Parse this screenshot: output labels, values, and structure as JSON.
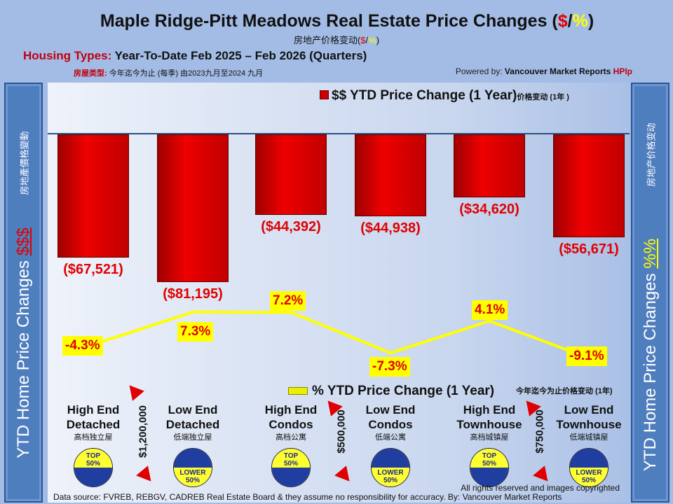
{
  "header": {
    "title": "Maple Ridge-Pitt Meadows Real Estate Price Changes (",
    "title_dollar": "$",
    "title_slash": "/",
    "title_pct": "%",
    "title_end": ")",
    "subtitle_cn": "房地产价格变动(",
    "subtitle_cn_dollar": "$",
    "subtitle_cn_pct": "%",
    "housing_label": "Housing Types:",
    "housing_range": "Year-To-Date Feb 2025 – Feb 2026 (Quarters)",
    "housing_cn_label": "房屋类型:",
    "housing_cn_text": "今年迄今为止  (每季) 由2023九月至2024 九月",
    "powered_prefix": "Powered by:",
    "powered_name": "Vancouver Market Reports",
    "powered_tag": "HPIp"
  },
  "side": {
    "left_title": "YTD Home Price Changes",
    "left_symbol": "$$$",
    "left_cn": "房地產價格變動",
    "right_title": "YTD Home Price  Changes",
    "right_symbol": "%%",
    "right_cn": "房地产价格变动"
  },
  "chart_data": {
    "type": "bar+line",
    "categories": [
      "High End Detached",
      "Low End Detached",
      "High End Condos",
      "Low End Condos",
      "High End Townhouse",
      "Low End Townhouse"
    ],
    "series": [
      {
        "name": "$$ YTD Price Change (1 Year)",
        "name_cn": "价格变动 (1年 )",
        "type": "bar",
        "color": "#e00000",
        "values": [
          -67521,
          -81195,
          -44392,
          -44938,
          -34620,
          -56671
        ],
        "labels": [
          "($67,521)",
          "($81,195)",
          "($44,392)",
          "($44,938)",
          "($34,620)",
          "($56,671)"
        ]
      },
      {
        "name": "% YTD Price Change (1 Year)",
        "name_cn": "今年迄今为止价格变动 (1年)",
        "type": "line",
        "color": "#ffff00",
        "values": [
          -4.3,
          7.3,
          7.2,
          -7.3,
          4.1,
          -9.1
        ],
        "labels": [
          "-4.3%",
          "7.3%",
          "7.2%",
          "-7.3%",
          "4.1%",
          "-9.1%"
        ]
      }
    ]
  },
  "categories": [
    {
      "l1": "High End",
      "l2": "Detached",
      "cn": "高档独立屋",
      "badge": "TOP",
      "pct": "50%"
    },
    {
      "l1": "Low End",
      "l2": "Detached",
      "cn": "低端独立屋",
      "badge": "LOWER",
      "pct": "50%"
    },
    {
      "l1": "High End",
      "l2": "Condos",
      "cn": "高档公寓",
      "badge": "TOP",
      "pct": "50%"
    },
    {
      "l1": "Low End",
      "l2": "Condos",
      "cn": "低端公寓",
      "badge": "LOWER",
      "pct": "50%"
    },
    {
      "l1": "High End",
      "l2": "Townhouse",
      "cn": "高档城镇屋",
      "badge": "TOP",
      "pct": "50%"
    },
    {
      "l1": "Low End",
      "l2": "Townhouse",
      "cn": "低端城镇屋",
      "badge": "LOWER",
      "pct": "50%"
    }
  ],
  "thresholds": [
    "$1,200,000",
    "$500,000",
    "$750,000"
  ],
  "footer": {
    "rights": "All rights reserved and  images copyrighted",
    "source": "Data source: FVREB, REBGV, CADREB Real Estate Board & they assume no responsibility for accuracy. By: Vancouver Market Reports"
  }
}
